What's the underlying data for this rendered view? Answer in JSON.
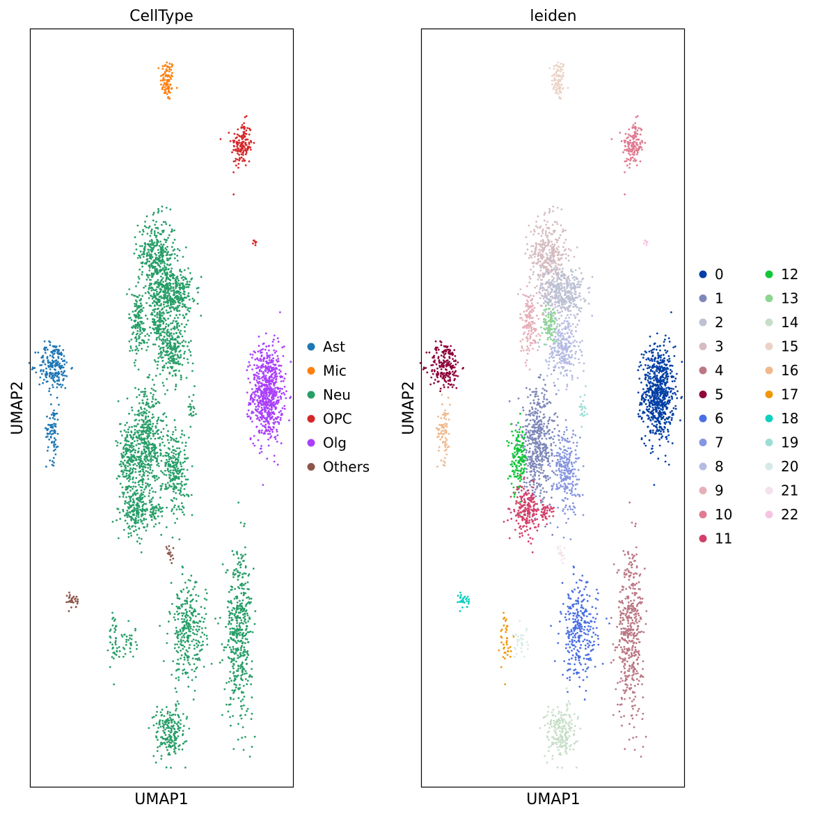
{
  "chart_data": [
    {
      "type": "scatter",
      "title": "CellType",
      "xlabel": "UMAP1",
      "ylabel": "UMAP2",
      "color_by": "celltype",
      "xlim": [
        0,
        10
      ],
      "ylim": [
        0,
        28.8
      ],
      "grid": false,
      "legend_placement": "right",
      "legend": [
        {
          "label": "Ast",
          "color": "#1f77b4"
        },
        {
          "label": "Mic",
          "color": "#ff7f0e"
        },
        {
          "label": "Neu",
          "color": "#279e68"
        },
        {
          "label": "OPC",
          "color": "#d62728"
        },
        {
          "label": "Olg",
          "color": "#aa40fc"
        },
        {
          "label": "Others",
          "color": "#8c564b"
        }
      ]
    },
    {
      "type": "scatter",
      "title": "leiden",
      "xlabel": "UMAP1",
      "ylabel": "UMAP2",
      "color_by": "leiden",
      "xlim": [
        0,
        10
      ],
      "ylim": [
        0,
        28.8
      ],
      "grid": false,
      "legend_placement": "right (2 columns)",
      "legend": [
        {
          "label": "0",
          "color": "#023fa5"
        },
        {
          "label": "1",
          "color": "#7d87b9"
        },
        {
          "label": "2",
          "color": "#bec1d4"
        },
        {
          "label": "3",
          "color": "#d6bcc0"
        },
        {
          "label": "4",
          "color": "#bb7784"
        },
        {
          "label": "5",
          "color": "#8e063b"
        },
        {
          "label": "6",
          "color": "#4a6fe3"
        },
        {
          "label": "7",
          "color": "#8595e1"
        },
        {
          "label": "8",
          "color": "#b5bbe3"
        },
        {
          "label": "9",
          "color": "#e6afb9"
        },
        {
          "label": "10",
          "color": "#e07b91"
        },
        {
          "label": "11",
          "color": "#d33f6a"
        },
        {
          "label": "12",
          "color": "#11c638"
        },
        {
          "label": "13",
          "color": "#8dd593"
        },
        {
          "label": "14",
          "color": "#c6dec7"
        },
        {
          "label": "15",
          "color": "#ead3c6"
        },
        {
          "label": "16",
          "color": "#f0b98d"
        },
        {
          "label": "17",
          "color": "#ef9708"
        },
        {
          "label": "18",
          "color": "#0fcfc0"
        },
        {
          "label": "19",
          "color": "#9cded6"
        },
        {
          "label": "20",
          "color": "#d5eae7"
        },
        {
          "label": "21",
          "color": "#f3e1eb"
        },
        {
          "label": "22",
          "color": "#f6c4e1"
        }
      ]
    }
  ],
  "clusters": [
    {
      "celltype": "Mic",
      "leiden": "15",
      "center": [
        5.21,
        26.85
      ],
      "sd": [
        0.13,
        0.4
      ],
      "n": 90
    },
    {
      "celltype": "OPC",
      "leiden": "10",
      "center": [
        8.04,
        24.4
      ],
      "sd": [
        0.2,
        0.45
      ],
      "n": 150
    },
    {
      "celltype": "OPC",
      "leiden": "22",
      "center": [
        8.54,
        20.7
      ],
      "sd": [
        0.03,
        0.06
      ],
      "n": 8
    },
    {
      "celltype": "Olg",
      "leiden": "0",
      "center": [
        9.0,
        14.95
      ],
      "sd": [
        0.3,
        0.9
      ],
      "n": 700
    },
    {
      "celltype": "Ast",
      "leiden": "5",
      "center": [
        0.9,
        16.0
      ],
      "sd": [
        0.3,
        0.45
      ],
      "n": 200
    },
    {
      "celltype": "Ast",
      "leiden": "16",
      "center": [
        0.85,
        13.6
      ],
      "sd": [
        0.12,
        0.6
      ],
      "n": 80
    },
    {
      "celltype": "Neu",
      "leiden": "3",
      "center": [
        4.8,
        20.2
      ],
      "sd": [
        0.35,
        0.7
      ],
      "n": 350
    },
    {
      "celltype": "Neu",
      "leiden": "2",
      "center": [
        5.35,
        18.8
      ],
      "sd": [
        0.4,
        0.5
      ],
      "n": 400
    },
    {
      "celltype": "Neu",
      "leiden": "9",
      "center": [
        4.1,
        17.6
      ],
      "sd": [
        0.18,
        0.6
      ],
      "n": 150
    },
    {
      "celltype": "Neu",
      "leiden": "13",
      "center": [
        4.9,
        17.6
      ],
      "sd": [
        0.15,
        0.35
      ],
      "n": 90
    },
    {
      "celltype": "Neu",
      "leiden": "8",
      "center": [
        5.4,
        16.6
      ],
      "sd": [
        0.3,
        0.6
      ],
      "n": 250
    },
    {
      "celltype": "Neu",
      "leiden": "1",
      "center": [
        4.4,
        13.0
      ],
      "sd": [
        0.35,
        1.0
      ],
      "n": 500
    },
    {
      "celltype": "Neu",
      "leiden": "12",
      "center": [
        3.7,
        12.4
      ],
      "sd": [
        0.15,
        0.6
      ],
      "n": 150
    },
    {
      "celltype": "Neu",
      "leiden": "11",
      "center": [
        3.97,
        10.5
      ],
      "sd": [
        0.25,
        0.45
      ],
      "n": 200
    },
    {
      "celltype": "Neu",
      "leiden": "11",
      "center": [
        4.76,
        10.45
      ],
      "sd": [
        0.15,
        0.2
      ],
      "n": 40
    },
    {
      "celltype": "Neu",
      "leiden": "7",
      "center": [
        5.5,
        12.0
      ],
      "sd": [
        0.25,
        0.8
      ],
      "n": 250
    },
    {
      "celltype": "Others",
      "leiden": "21",
      "center": [
        5.34,
        8.9
      ],
      "sd": [
        0.08,
        0.25
      ],
      "n": 15
    },
    {
      "celltype": "Others",
      "leiden": "18",
      "center": [
        1.61,
        7.1
      ],
      "sd": [
        0.1,
        0.15
      ],
      "n": 30
    },
    {
      "celltype": "Neu",
      "leiden": "20",
      "center": [
        3.76,
        5.5
      ],
      "sd": [
        0.15,
        0.3
      ],
      "n": 30
    },
    {
      "celltype": "Neu",
      "leiden": "17",
      "center": [
        3.2,
        5.5
      ],
      "sd": [
        0.1,
        0.6
      ],
      "n": 40
    },
    {
      "celltype": "Neu",
      "leiden": "6",
      "center": [
        6.0,
        5.9
      ],
      "sd": [
        0.35,
        0.9
      ],
      "n": 300
    },
    {
      "celltype": "Neu",
      "leiden": "4",
      "center": [
        7.95,
        5.9
      ],
      "sd": [
        0.25,
        1.6
      ],
      "n": 450
    },
    {
      "celltype": "Neu",
      "leiden": "14",
      "center": [
        5.3,
        2.1
      ],
      "sd": [
        0.3,
        0.5
      ],
      "n": 200
    },
    {
      "celltype": "Neu",
      "leiden": "19",
      "center": [
        6.15,
        14.4
      ],
      "sd": [
        0.07,
        0.3
      ],
      "n": 20
    }
  ]
}
